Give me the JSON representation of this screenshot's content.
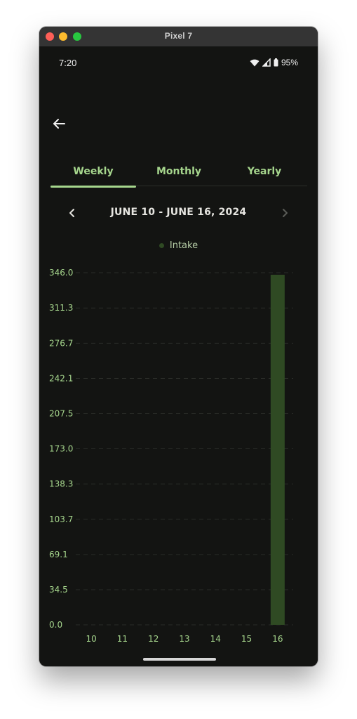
{
  "window": {
    "title": "Pixel 7"
  },
  "status_bar": {
    "time": "7:20",
    "battery": "95%",
    "icons": [
      "wifi-icon",
      "signal-icon",
      "battery-icon"
    ]
  },
  "toolbar": {
    "back_icon": "arrow-left-icon"
  },
  "tabs": [
    {
      "label": "Weekly",
      "active": true
    },
    {
      "label": "Monthly",
      "active": false
    },
    {
      "label": "Yearly",
      "active": false
    }
  ],
  "range": {
    "title": "JUNE 10 - JUNE 16, 2024",
    "prev_icon": "chevron-left-icon",
    "next_icon": "chevron-right-icon"
  },
  "legend": {
    "label": "Intake",
    "color": "#2f4a23"
  },
  "colors": {
    "accent": "#a6d68d",
    "background": "#131412",
    "bar": "#2f4a23",
    "axis_text": "#a6d68d"
  },
  "chart_data": {
    "type": "bar",
    "categories": [
      "10",
      "11",
      "12",
      "13",
      "14",
      "15",
      "16"
    ],
    "series": [
      {
        "name": "Intake",
        "values": [
          0,
          0,
          0,
          0,
          0,
          0,
          344
        ]
      }
    ],
    "ylim": [
      0,
      346.0
    ],
    "y_ticks": [
      "0.0",
      "34.5",
      "69.1",
      "103.7",
      "138.3",
      "173.0",
      "207.5",
      "242.1",
      "276.7",
      "311.3",
      "346.0"
    ],
    "grid": true,
    "legend_position": "top"
  }
}
